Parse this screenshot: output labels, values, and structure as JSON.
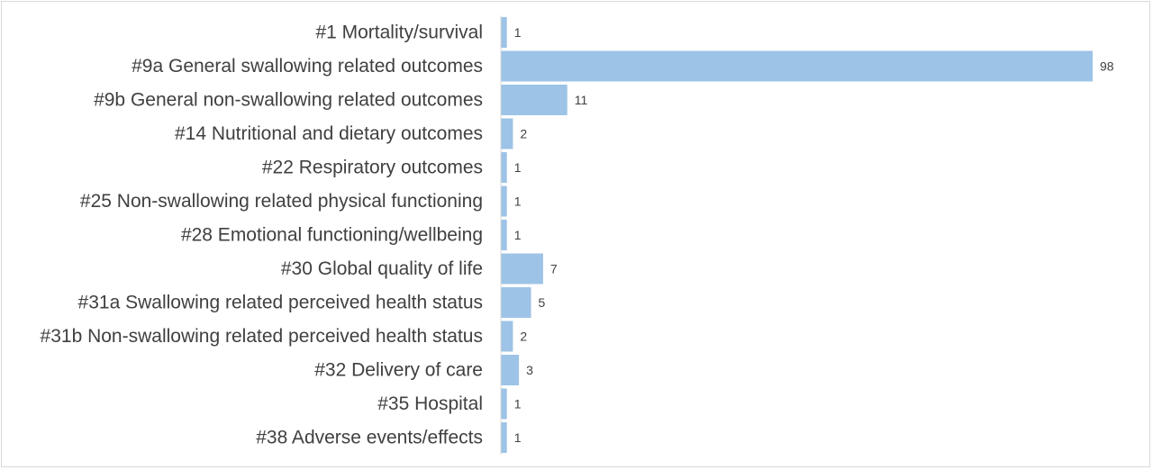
{
  "chart_data": {
    "type": "bar",
    "orientation": "horizontal",
    "categories": [
      "#1 Mortality/survival",
      "#9a General swallowing related outcomes",
      "#9b General non-swallowing related outcomes",
      "#14 Nutritional and dietary outcomes",
      "#22 Respiratory outcomes",
      "#25 Non-swallowing related physical functioning",
      "#28 Emotional functioning/wellbeing",
      "#30 Global quality of life",
      "#31a Swallowing related perceived health status",
      "#31b Non-swallowing related perceived health status",
      "#32 Delivery of care",
      "#35 Hospital",
      "#38 Adverse events/effects"
    ],
    "values": [
      1,
      98,
      11,
      2,
      1,
      1,
      1,
      7,
      5,
      2,
      3,
      1,
      1
    ],
    "title": "",
    "xlabel": "",
    "ylabel": "",
    "xlim": [
      0,
      98
    ],
    "grid": false,
    "legend": "none",
    "bar_color": "#9dc3e6",
    "text_color": "#404040",
    "axis_color": "#d9d9d9"
  }
}
